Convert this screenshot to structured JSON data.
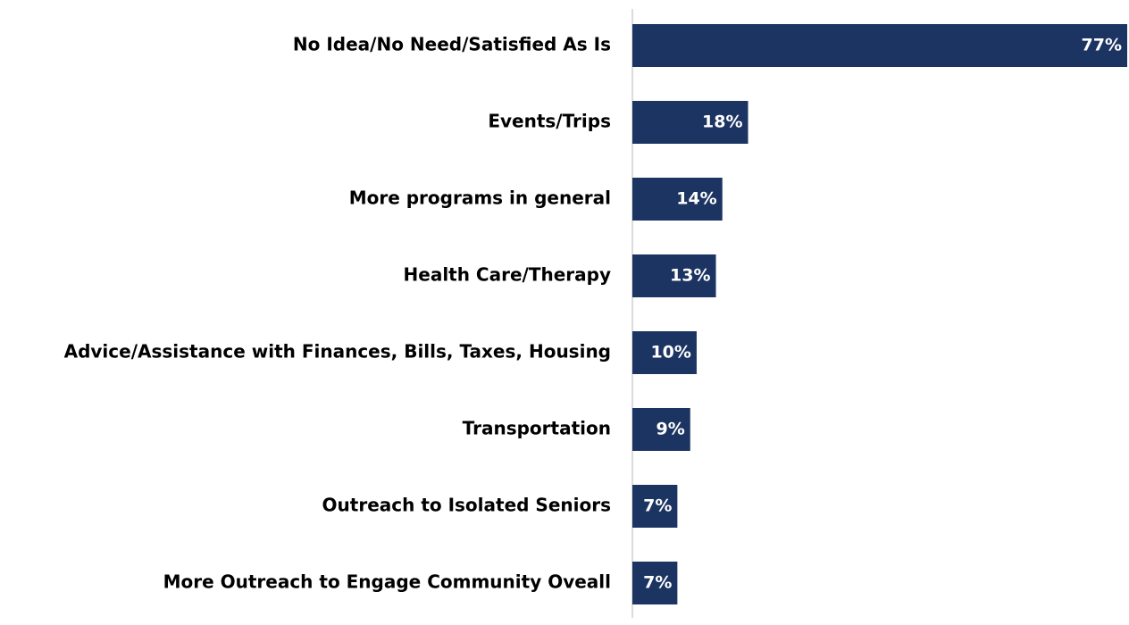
{
  "chart_data": {
    "type": "bar",
    "orientation": "horizontal",
    "color": "#1c3461",
    "categories": [
      "No Idea/No Need/Satisfied As Is",
      "Events/Trips",
      "More programs in general",
      "Health Care/Therapy",
      "Advice/Assistance with Finances, Bills, Taxes, Housing",
      "Transportation",
      "Outreach to Isolated Seniors",
      "More Outreach to Engage Community Oveall"
    ],
    "values": [
      77,
      18,
      14,
      13,
      10,
      9,
      7,
      7
    ],
    "value_labels": [
      "77%",
      "18%",
      "14%",
      "13%",
      "10%",
      "9%",
      "7%",
      "7%"
    ]
  }
}
